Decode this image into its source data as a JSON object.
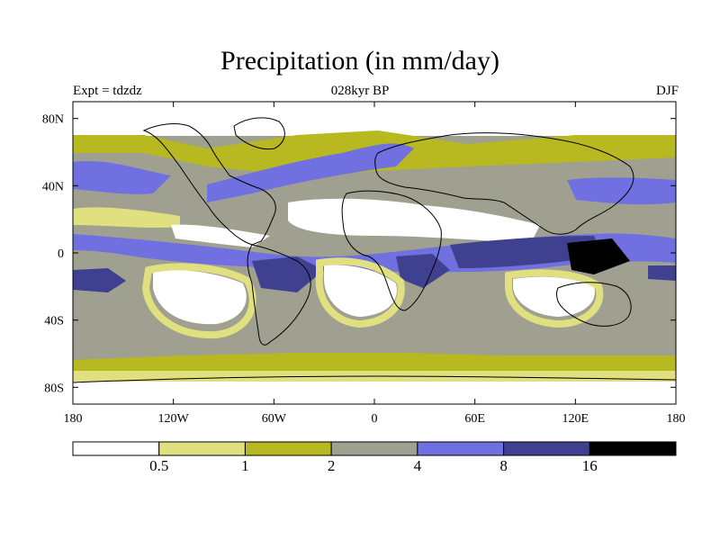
{
  "title": "Precipitation (in mm/day)",
  "subtitle_left": "Expt = tdzdz",
  "subtitle_center": "028kyr BP",
  "subtitle_right": "DJF",
  "lat_labels": [
    "80N",
    "40N",
    "0",
    "40S",
    "80S"
  ],
  "lon_labels": [
    "180",
    "120W",
    "60W",
    "0",
    "60E",
    "120E",
    "180"
  ],
  "colorbar": {
    "colors": [
      "#ffffff",
      "#e0e080",
      "#b8b820",
      "#a0a090",
      "#7070e0",
      "#404090",
      "#000000"
    ],
    "labels": [
      "0.5",
      "1",
      "2",
      "4",
      "8",
      "16"
    ]
  }
}
